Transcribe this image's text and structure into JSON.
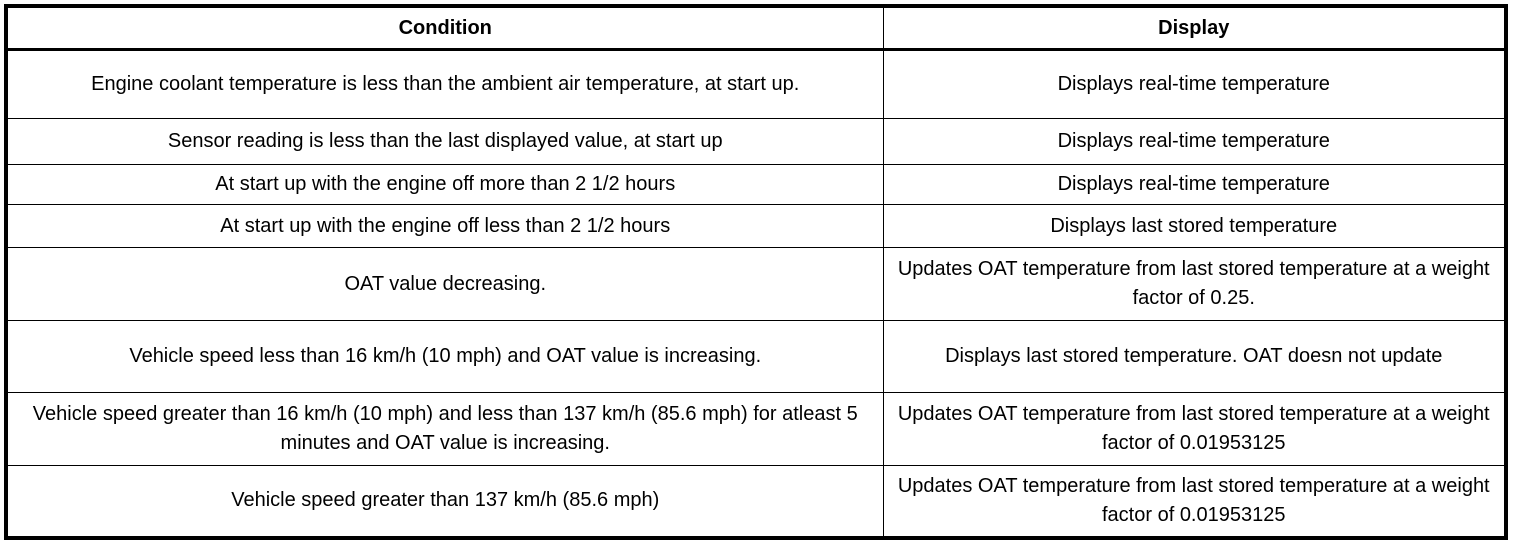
{
  "table": {
    "headers": [
      "Condition",
      "Display"
    ],
    "rows": [
      {
        "condition": "Engine coolant temperature is less than the ambient air temperature, at start up.",
        "display": "Displays real-time temperature"
      },
      {
        "condition": "Sensor reading is less than the last displayed value, at start up",
        "display": "Displays real-time temperature"
      },
      {
        "condition": "At start up with the engine off more than 2 1/2 hours",
        "display": "Displays real-time temperature"
      },
      {
        "condition": "At start up with the engine off less than 2 1/2 hours",
        "display": "Displays last stored temperature"
      },
      {
        "condition": "OAT value decreasing.",
        "display": "Updates OAT temperature from last stored temperature at a weight factor of 0.25."
      },
      {
        "condition": "Vehicle speed less than 16 km/h (10 mph) and OAT value is increasing.",
        "display": "Displays last stored temperature. OAT doesn not update"
      },
      {
        "condition": "Vehicle speed greater than 16 km/h (10 mph) and less than 137 km/h (85.6 mph) for atleast 5 minutes and OAT value is increasing.",
        "display": "Updates OAT temperature from last stored temperature at a weight factor of 0.01953125"
      },
      {
        "condition": "Vehicle speed greater than 137 km/h (85.6 mph)",
        "display": "Updates OAT temperature from last stored temperature at a weight factor of 0.01953125"
      }
    ]
  }
}
